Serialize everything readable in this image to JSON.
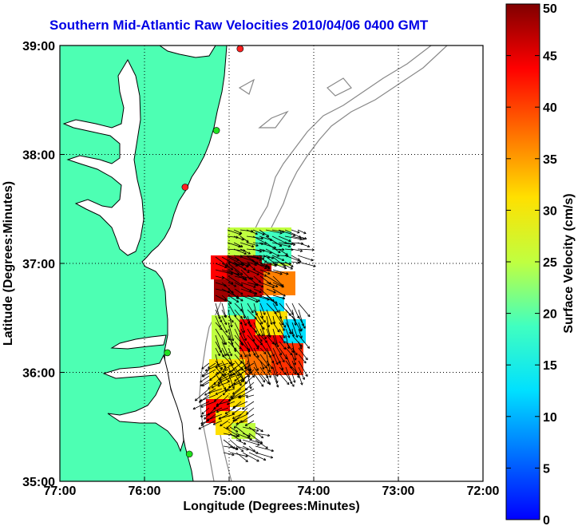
{
  "title": "Southern Mid-Atlantic Raw Velocities 2010/04/06 0400 GMT",
  "x_axis": {
    "label": "Longitude (Degrees:Minutes)",
    "ticks": [
      "77:00",
      "76:00",
      "75:00",
      "74:00",
      "73:00",
      "72:00"
    ]
  },
  "y_axis": {
    "label": "Latitude (Degrees:Minutes)",
    "ticks": [
      "39:00",
      "38:00",
      "37:00",
      "36:00",
      "35:00"
    ]
  },
  "colorbar": {
    "label": "Surface Velocity (cm/s)",
    "ticks": [
      "50",
      "45",
      "40",
      "35",
      "30",
      "25",
      "20",
      "15",
      "10",
      "5",
      "0"
    ]
  },
  "colors": {
    "land": "#4dffb3",
    "title": "#0000e6",
    "bathymetry": "#888888"
  },
  "stations": [
    {
      "lon": -74.87,
      "lat": 38.97,
      "status": "red"
    },
    {
      "lon": -75.15,
      "lat": 38.22,
      "status": "green"
    },
    {
      "lon": -75.52,
      "lat": 37.7,
      "status": "red"
    },
    {
      "lon": -75.73,
      "lat": 36.18,
      "status": "green"
    },
    {
      "lon": -75.47,
      "lat": 35.25,
      "status": "green"
    }
  ]
}
